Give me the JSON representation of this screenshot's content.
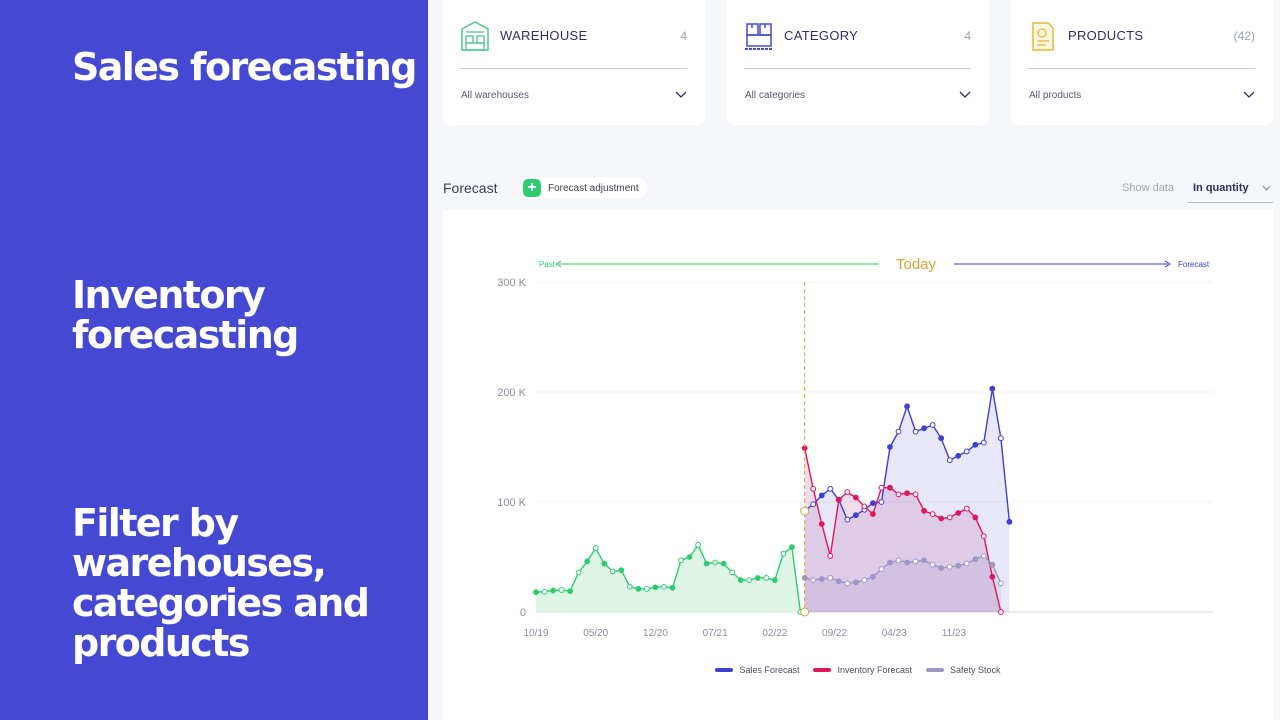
{
  "hero": {
    "line1": "Sales forecasting",
    "line2": "Inventory forecasting",
    "line3": "Filter by warehouses, categories and products"
  },
  "filters": {
    "warehouse": {
      "title": "WAREHOUSE",
      "count": "4",
      "selected": "All warehouses",
      "icon": "warehouse-icon"
    },
    "category": {
      "title": "CATEGORY",
      "count": "4",
      "selected": "All categories",
      "icon": "boxes-icon"
    },
    "products": {
      "title": "PRODUCTS",
      "count": "(42)",
      "selected": "All products",
      "icon": "document-icon"
    }
  },
  "toolbar": {
    "forecast_label": "Forecast",
    "adjustment_label": "Forecast adjustment",
    "show_data_label": "Show data",
    "show_data_value": "In quantity"
  },
  "colors": {
    "sidebar": "#4548d3",
    "sales": "#3d40d6",
    "inventory": "#e0175c",
    "safety": "#9b98c4",
    "past": "#2ecc71",
    "today": "#d4a437"
  },
  "chart_data": {
    "type": "line",
    "timeline": {
      "past_label": "Past",
      "today_label": "Today",
      "forecast_label": "Forecast"
    },
    "x_tick_labels": [
      "10/19",
      "05/20",
      "12/20",
      "07/21",
      "02/22",
      "09/22",
      "04/23",
      "11/23"
    ],
    "x_tick_index": [
      0,
      7,
      14,
      21,
      28,
      35,
      42,
      49
    ],
    "y_ticks": [
      {
        "v": 0,
        "label": "0"
      },
      {
        "v": 100000,
        "label": "100  K"
      },
      {
        "v": 200000,
        "label": "200  K"
      },
      {
        "v": 300000,
        "label": "300  K"
      }
    ],
    "ylim": [
      0,
      300000
    ],
    "x_count": 56,
    "today_index": 31.5,
    "series": [
      {
        "name": "",
        "start": 0,
        "values": [
          18000,
          18500,
          19500,
          20000,
          19000,
          36000,
          46000,
          58000,
          44000,
          37000,
          38000,
          23000,
          21000,
          21000,
          22500,
          23000,
          22000,
          47000,
          50000,
          61000,
          44000,
          45000,
          44000,
          36000,
          29000,
          29000,
          31000,
          31000,
          29000,
          53000,
          59000,
          0
        ]
      },
      {
        "name": "Sales Forecast",
        "start": 31.5,
        "values": [
          92000,
          98000,
          106000,
          112000,
          102000,
          84000,
          88000,
          93000,
          99000,
          100000,
          150000,
          164000,
          187000,
          164000,
          167000,
          170000,
          158000,
          138000,
          142000,
          146000,
          152000,
          154000,
          203000,
          158000,
          82000
        ]
      },
      {
        "name": "Inventory Forecast",
        "start": 31.5,
        "values": [
          149000,
          112000,
          80000,
          51000,
          102000,
          109000,
          104000,
          96000,
          89000,
          113000,
          113000,
          107000,
          108000,
          107000,
          92000,
          89000,
          85000,
          86000,
          90000,
          94000,
          86000,
          69000,
          32000,
          0
        ]
      },
      {
        "name": "Safety Stock",
        "start": 31.5,
        "values": [
          31000,
          29000,
          30000,
          31000,
          28000,
          26000,
          27000,
          29000,
          32000,
          39000,
          45000,
          47000,
          45000,
          46000,
          47000,
          43000,
          40000,
          41000,
          42000,
          44000,
          48000,
          51000,
          43000,
          26000
        ]
      }
    ]
  }
}
